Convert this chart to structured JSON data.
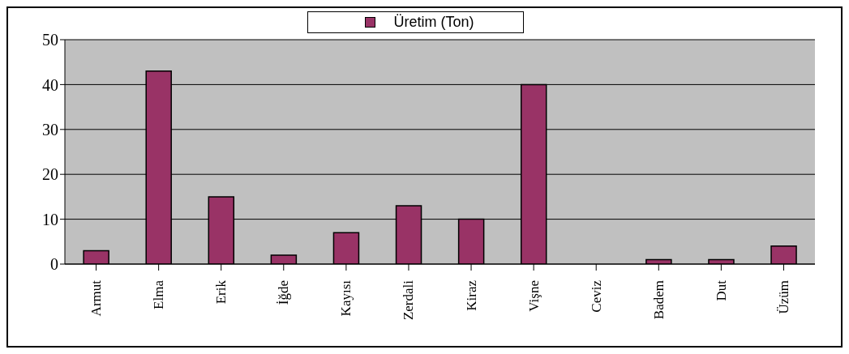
{
  "chart_data": {
    "type": "bar",
    "categories": [
      "Armut",
      "Elma",
      "Erik",
      "İğde",
      "Kayısı",
      "Zerdali",
      "Kiraz",
      "Vişne",
      "Ceviz",
      "Badem",
      "Dut",
      "Üzüm"
    ],
    "series": [
      {
        "name": "Üretim (Ton)",
        "color": "#993366",
        "values": [
          3,
          43,
          15,
          2,
          7,
          13,
          10,
          40,
          0,
          1,
          1,
          4
        ]
      }
    ],
    "ylim": [
      0,
      50
    ],
    "yticks": [
      0,
      10,
      20,
      30,
      40,
      50
    ],
    "grid": "y",
    "legend": "top"
  }
}
